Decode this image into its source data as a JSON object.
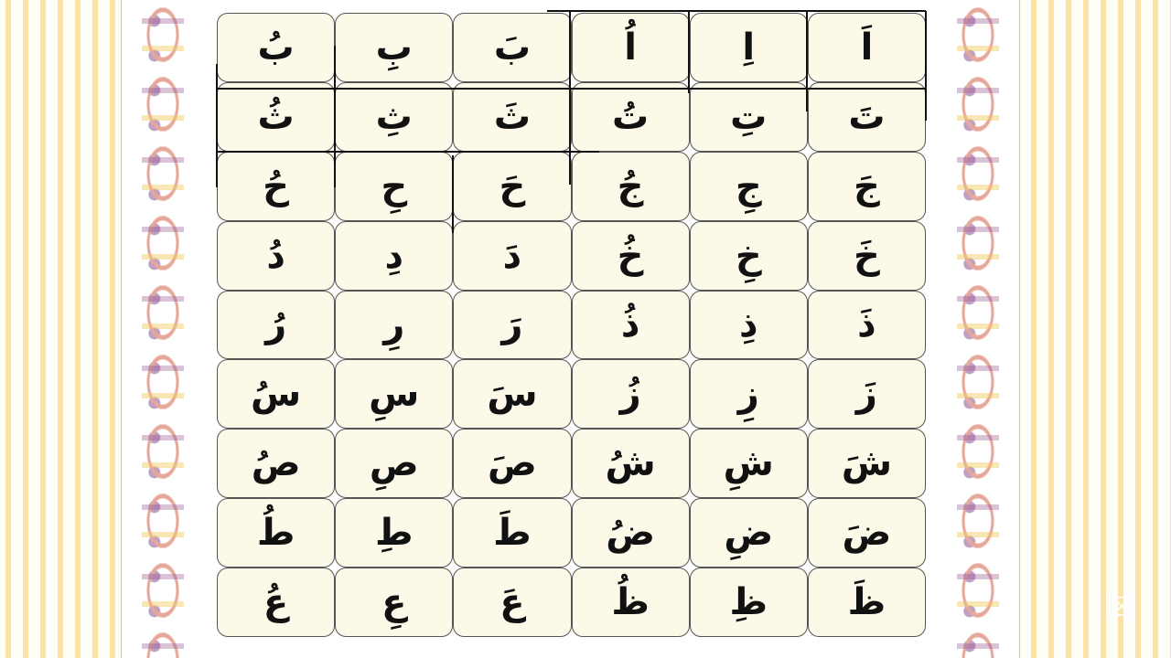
{
  "chart_rows": [
    [
      "اَ",
      "اِ",
      "اُ",
      "بَ",
      "بِ",
      "بُ"
    ],
    [
      "تَ",
      "تِ",
      "تُ",
      "ثَ",
      "ثِ",
      "ثُ"
    ],
    [
      "جَ",
      "جِ",
      "جُ",
      "حَ",
      "حِ",
      "حُ"
    ],
    [
      "خَ",
      "خِ",
      "خُ",
      "دَ",
      "دِ",
      "دُ"
    ],
    [
      "ذَ",
      "ذِ",
      "ذُ",
      "رَ",
      "رِ",
      "رُ"
    ],
    [
      "زَ",
      "زِ",
      "زُ",
      "سَ",
      "سِ",
      "سُ"
    ],
    [
      "شَ",
      "شِ",
      "شُ",
      "صَ",
      "صِ",
      "صُ"
    ],
    [
      "ضَ",
      "ضِ",
      "ضُ",
      "طَ",
      "طِ",
      "طُ"
    ],
    [
      "ظَ",
      "ظِ",
      "ظُ",
      "عَ",
      "عِ",
      "عُ"
    ]
  ],
  "colors": {
    "cell_bg": "#fcf9e8",
    "stripe": "#fbe2a6",
    "ink": "#111111"
  },
  "watermark_icon": "capcut-logo-icon"
}
